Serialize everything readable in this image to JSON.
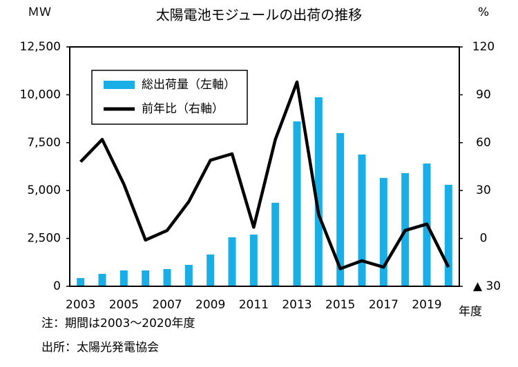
{
  "chart_data": {
    "type": "bar",
    "title": "太陽電池モジュールの出荷の推移",
    "y_label": "ＭＷ",
    "y2_label": "%",
    "x_label": "年度",
    "notes": [
      "注：期間は2003～2020年度",
      "出所：太陽光発電協会"
    ],
    "categories": [
      "2003",
      null,
      "2005",
      null,
      "2007",
      null,
      "2009",
      null,
      "2011",
      null,
      "2013",
      null,
      "2015",
      null,
      "2017",
      null,
      "2019",
      null
    ],
    "series": [
      {
        "name": "総出荷量（左軸）",
        "type": "bar",
        "color": "#1aaee6",
        "values": [
          430,
          650,
          830,
          830,
          900,
          1120,
          1660,
          2560,
          2700,
          4360,
          8610,
          9870,
          8000,
          6880,
          5660,
          5910,
          6410,
          5300
        ]
      },
      {
        "name": "前年比（右軸）",
        "type": "line",
        "axis": "y2",
        "color": "#000000",
        "values": [
          48,
          62,
          34,
          -1,
          5,
          23,
          49,
          53,
          7,
          62,
          98,
          15,
          -19,
          -14,
          -18,
          5,
          9,
          -18
        ]
      }
    ],
    "ylim": [
      0,
      12500
    ],
    "yticks": [
      0,
      {
        "value": 2500,
        "label": "2,500"
      },
      {
        "value": 5000,
        "label": "5,000"
      },
      {
        "value": 7500,
        "label": "7,500"
      },
      {
        "value": 10000,
        "label": "10,000"
      },
      {
        "value": 12500,
        "label": "12,500"
      }
    ],
    "y2lim": [
      -30,
      120
    ],
    "y2ticks": [
      {
        "value": -30,
        "label": "▲ 30"
      },
      0,
      30,
      60,
      90,
      120
    ],
    "legend": "upper left"
  }
}
